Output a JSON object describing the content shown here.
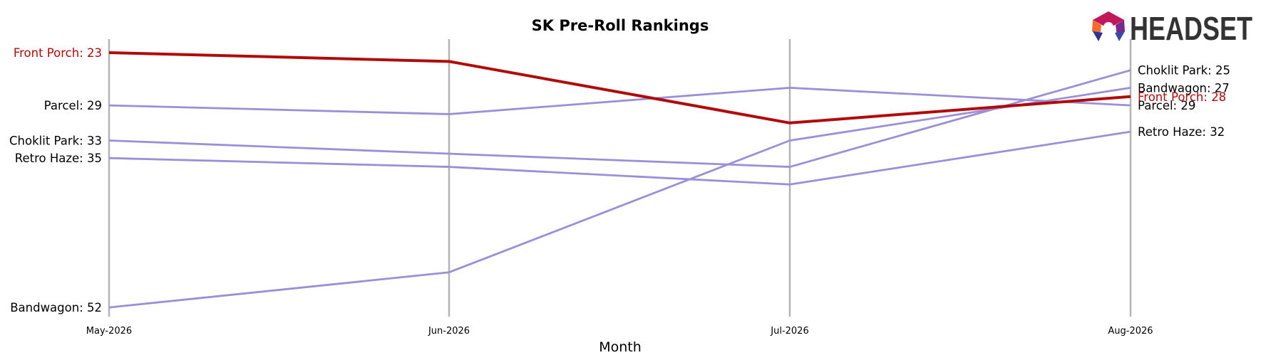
{
  "chart_data": {
    "type": "line",
    "title": "SK Pre-Roll Rankings",
    "xlabel": "Month",
    "ylabel": "",
    "categories": [
      "May-2026",
      "Jun-2026",
      "Jul-2026",
      "Aug-2026"
    ],
    "y_inverted": true,
    "ylim": [
      21.5,
      53.5
    ],
    "grid": "vertical lines at each month",
    "highlight_color": "#b00a0a",
    "other_color": "#9b8fd8",
    "series": [
      {
        "name": "Front Porch",
        "values": [
          23,
          24,
          31,
          28
        ],
        "highlight": true
      },
      {
        "name": "Parcel",
        "values": [
          29,
          30,
          27,
          29
        ],
        "highlight": false
      },
      {
        "name": "Choklit Park",
        "values": [
          33,
          34.5,
          36,
          25
        ],
        "highlight": false
      },
      {
        "name": "Retro Haze",
        "values": [
          35,
          36,
          38,
          32
        ],
        "highlight": false
      },
      {
        "name": "Bandwagon",
        "values": [
          52,
          48,
          33,
          27
        ],
        "highlight": false
      }
    ],
    "start_labels": [
      "Front Porch: 23",
      "Parcel: 29",
      "Choklit Park: 33",
      "Retro Haze: 35",
      "Bandwagon: 52"
    ],
    "end_labels": [
      "Choklit Park: 25",
      "Bandwagon: 27",
      "Front Porch: 28",
      "Parcel: 29",
      "Retro Haze: 32"
    ]
  },
  "logo": {
    "text": "HEADSET"
  }
}
